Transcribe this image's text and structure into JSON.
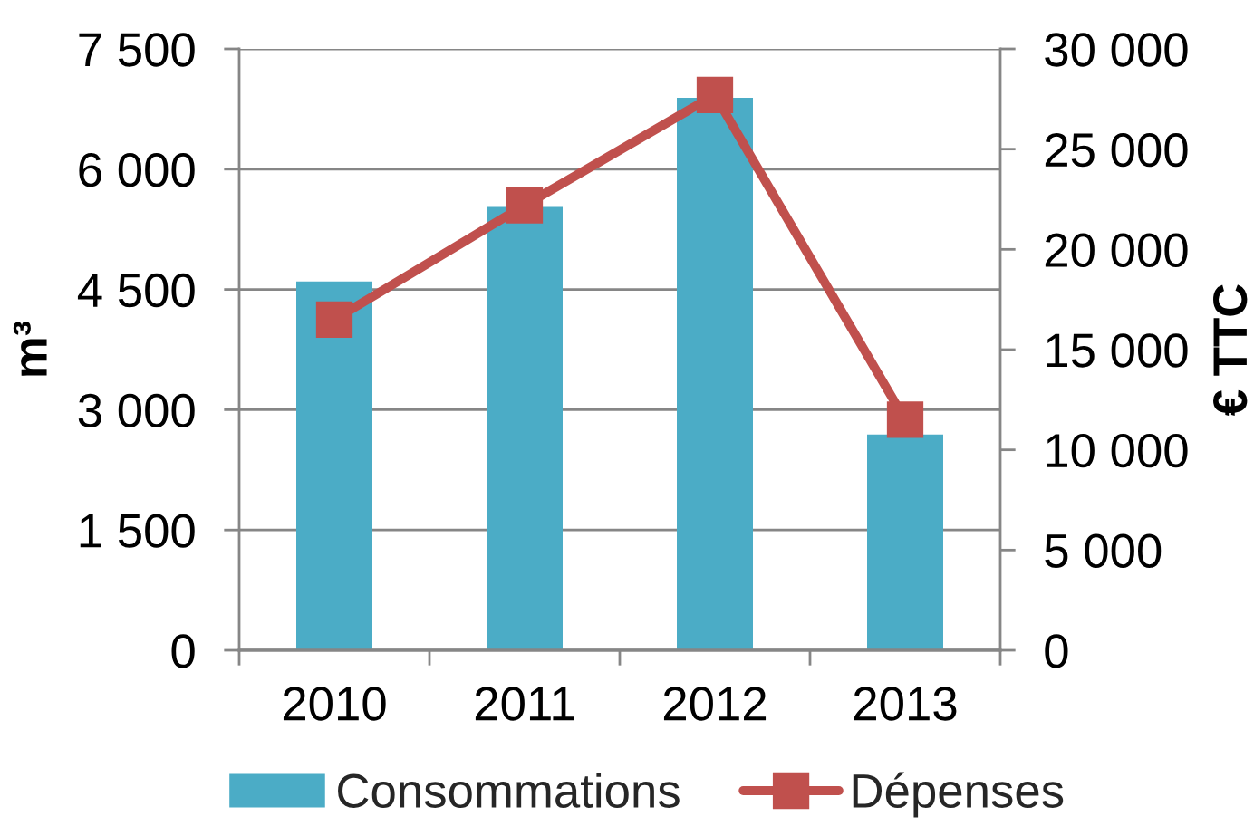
{
  "chart_data": {
    "type": "bar",
    "categories": [
      "2010",
      "2011",
      "2012",
      "2013"
    ],
    "ylabel": "m³",
    "y2label": "€ TTC",
    "series": [
      {
        "name": "Consommations",
        "color": "#4bacc6",
        "values": [
          4600,
          5530,
          6890,
          2690
        ]
      },
      {
        "name": "Dépenses",
        "type": "line",
        "axis": "y2",
        "color": "#c0504d",
        "values": [
          16500,
          22200,
          27700,
          11500
        ]
      }
    ],
    "ylim": [
      0,
      7500
    ],
    "yticks": [
      0,
      {
        "value": 1500,
        "label": "1 500"
      },
      {
        "value": 3000,
        "label": "3 000"
      },
      {
        "value": 4500,
        "label": "4 500"
      },
      {
        "value": 6000,
        "label": "6 000"
      },
      {
        "value": 7500,
        "label": "7 500"
      }
    ],
    "y2lim": [
      0,
      30000
    ],
    "y2ticks": [
      0,
      {
        "value": 5000,
        "label": "5 000"
      },
      {
        "value": 10000,
        "label": "10 000"
      },
      {
        "value": 15000,
        "label": "15 000"
      },
      {
        "value": 20000,
        "label": "20 000"
      },
      {
        "value": 25000,
        "label": "25 000"
      },
      {
        "value": 30000,
        "label": "30 000"
      }
    ],
    "grid": "y",
    "legend": "bottom",
    "marker": "square"
  }
}
